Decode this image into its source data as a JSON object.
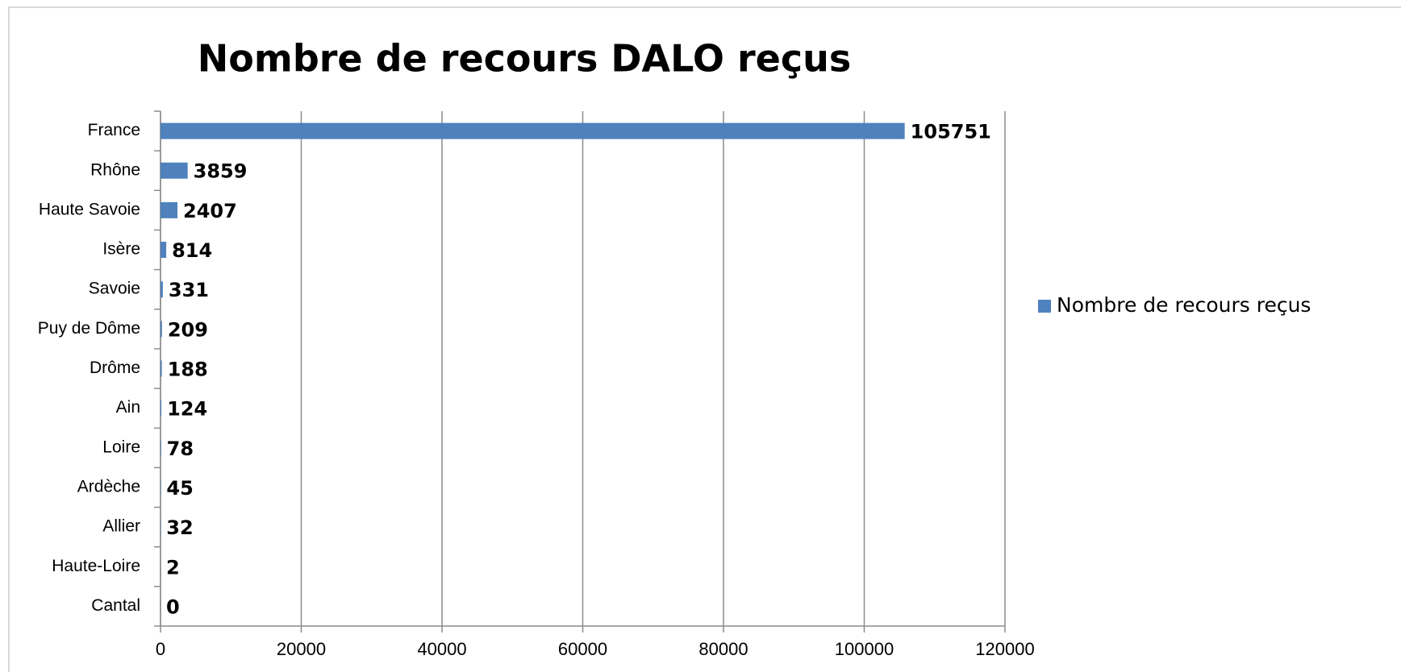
{
  "chart_data": {
    "type": "bar",
    "orientation": "horizontal",
    "title": "Nombre de recours DALO reçus",
    "categories": [
      "France",
      "Rhône",
      "Haute Savoie",
      "Isère",
      "Savoie",
      "Puy de Dôme",
      "Drôme",
      "Ain",
      "Loire",
      "Ardèche",
      "Allier",
      "Haute-Loire",
      "Cantal"
    ],
    "series": [
      {
        "name": "Nombre de recours reçus",
        "color": "#4f81bd",
        "values": [
          105751,
          3859,
          2407,
          814,
          331,
          209,
          188,
          124,
          78,
          45,
          32,
          2,
          0
        ]
      }
    ],
    "xlim": [
      0,
      120000
    ],
    "xticks": [
      0,
      20000,
      40000,
      60000,
      80000,
      100000,
      120000
    ],
    "grid": true,
    "legend": "right"
  }
}
